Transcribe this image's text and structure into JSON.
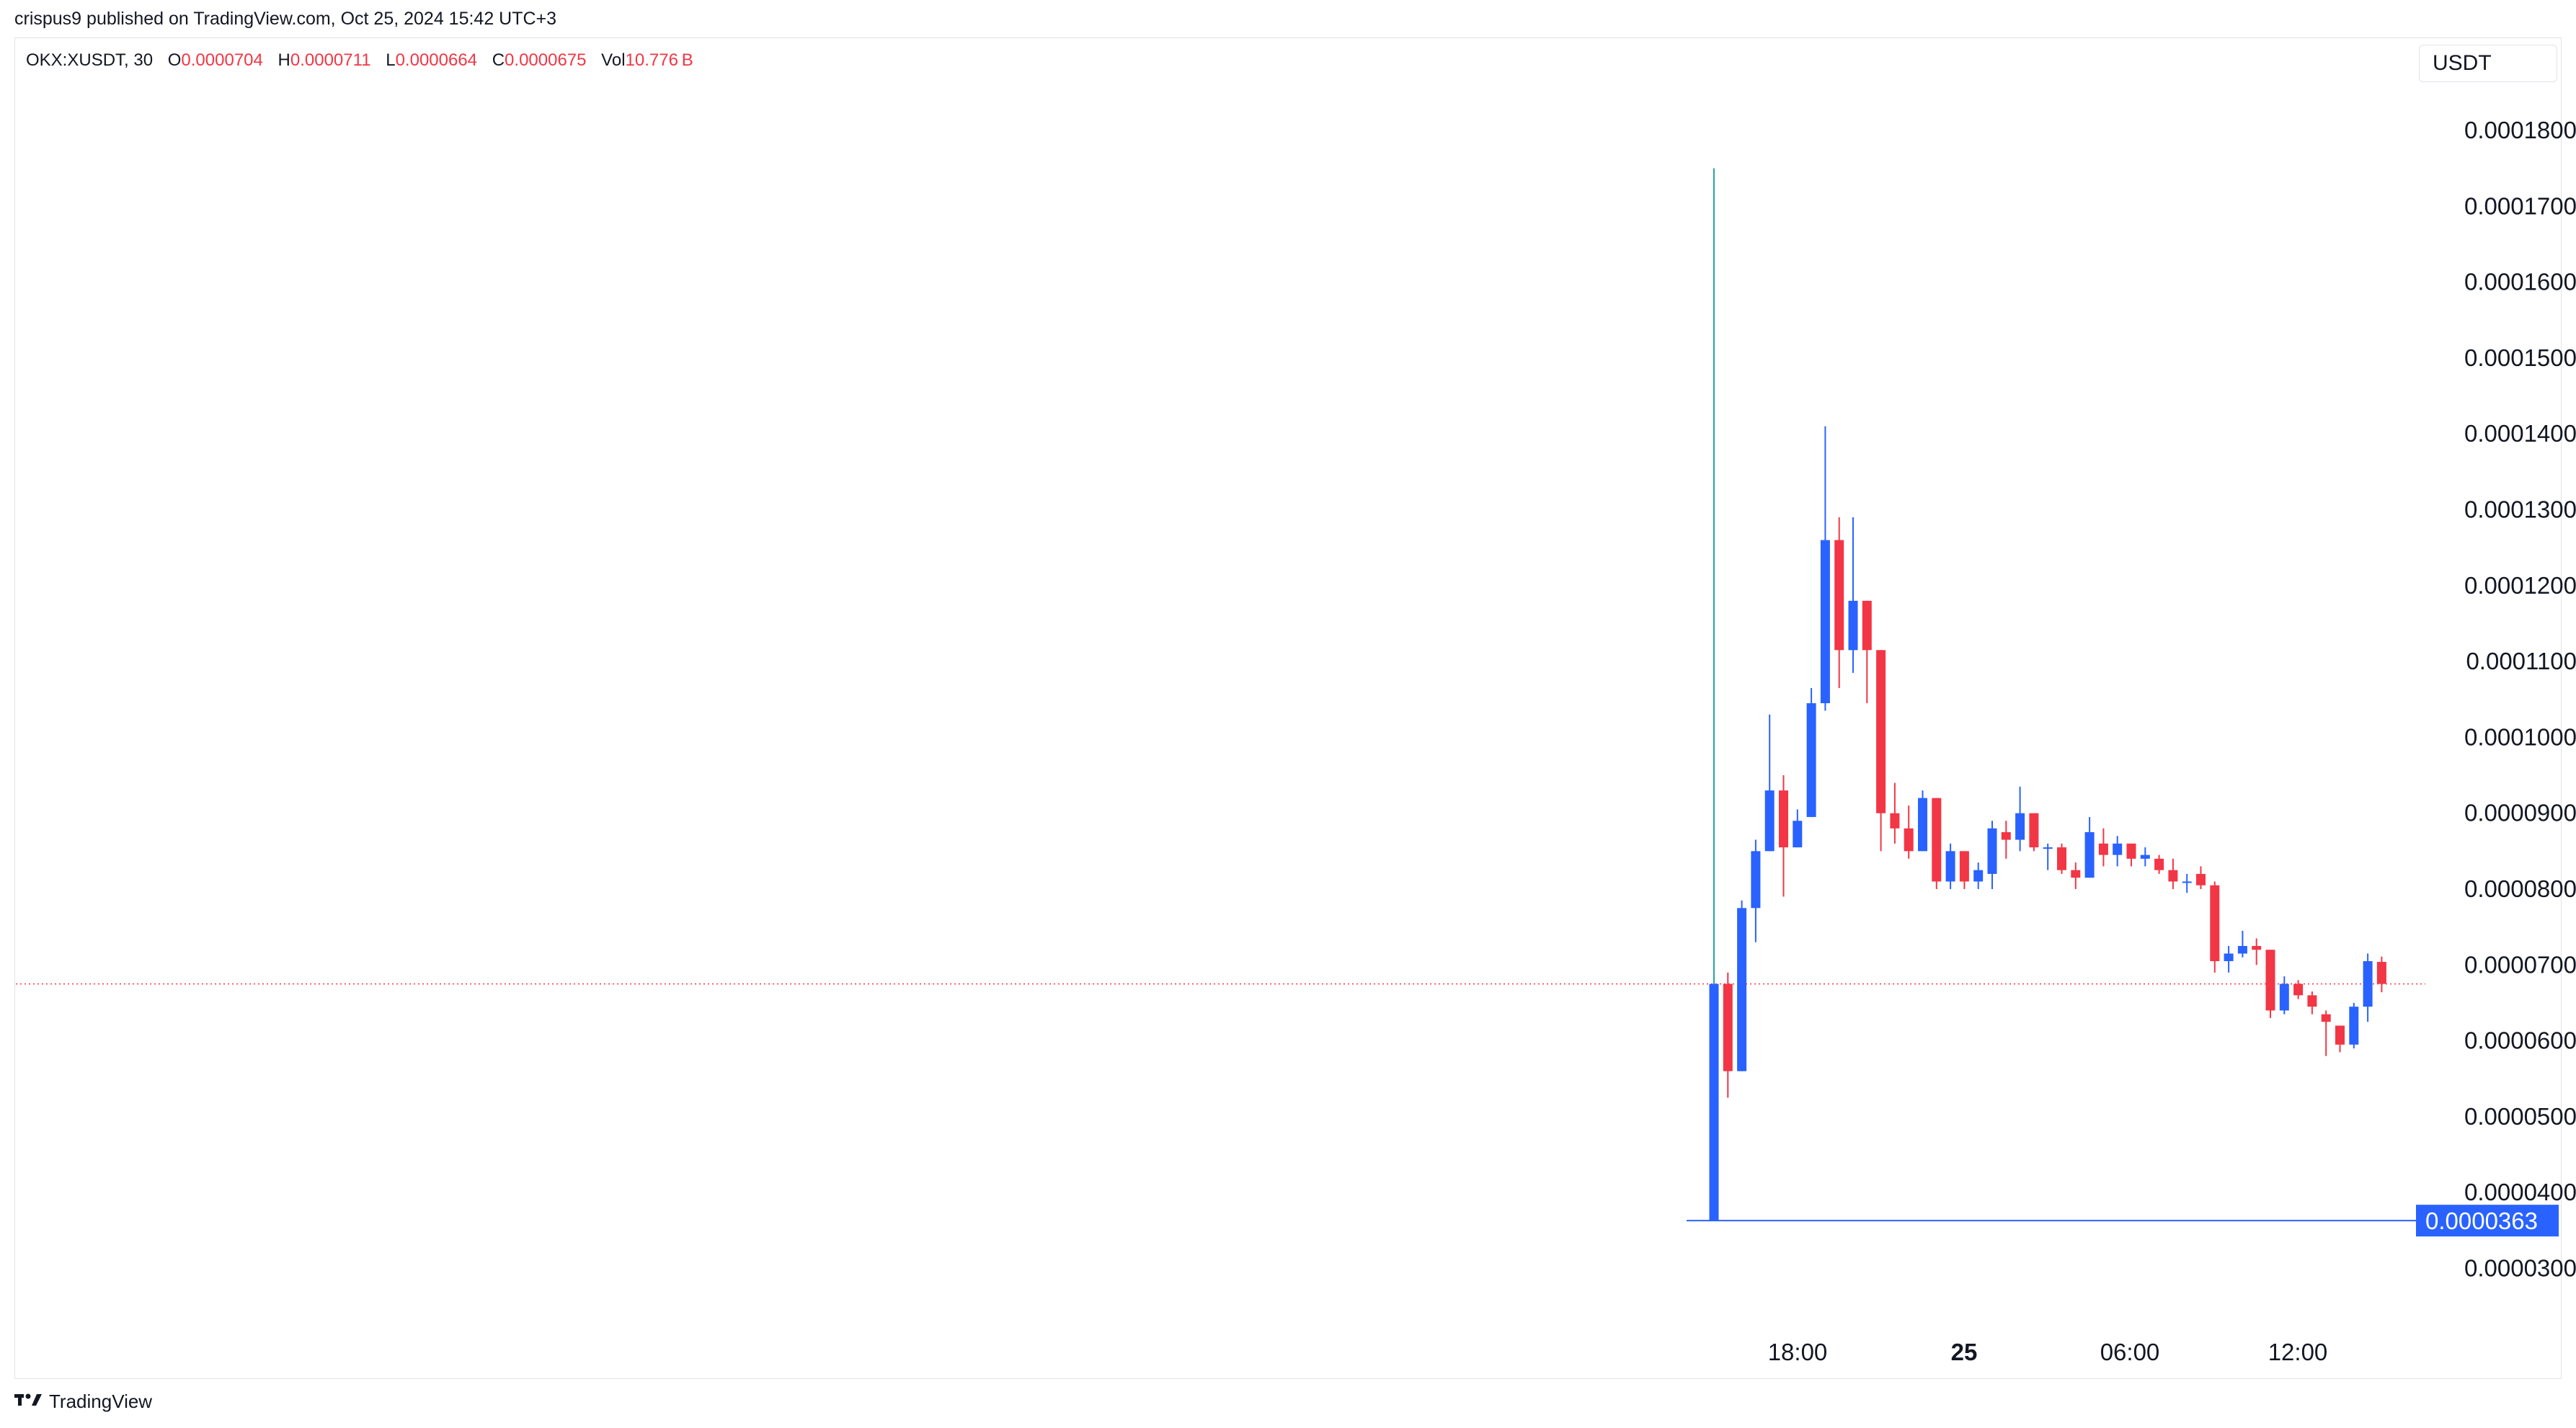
{
  "header": {
    "text": "crispus9 published on TradingView.com, Oct 25, 2024 15:42 UTC+3"
  },
  "legend": {
    "symbol": "OKX:XUSDT, 30",
    "o_label": "O",
    "o_value": "0.0000704",
    "h_label": "H",
    "h_value": "0.0000711",
    "l_label": "L",
    "l_value": "0.0000664",
    "c_label": "C",
    "c_value": "0.0000675",
    "vol_label": "Vol",
    "vol_value": "10.776 B"
  },
  "currency": "USDT",
  "footer": {
    "brand": "TradingView"
  },
  "colors": {
    "up": "#2962ff",
    "down": "#f23645",
    "spike_wick": "#26a69a",
    "price_line": "#f23645",
    "low_marker": "#2962ff"
  },
  "chart_data": {
    "type": "candlestick",
    "interval": "30",
    "y_axis": {
      "side": "right",
      "ticks": [
        "0.0001800",
        "0.0001700",
        "0.0001600",
        "0.0001500",
        "0.0001400",
        "0.0001300",
        "0.0001200",
        "0.0001100",
        "0.0001000",
        "0.0000900",
        "0.0000800",
        "0.0000700",
        "0.0000600",
        "0.0000500",
        "0.0000400",
        "0.0000300"
      ],
      "range": [
        2.15e-05,
        1.9e-05
      ]
    },
    "x_axis": {
      "ticks": [
        "18:00",
        "25",
        "06:00",
        "12:00"
      ],
      "bold": [
        "25"
      ]
    },
    "low_marker": {
      "value": 3.63e-05,
      "label": "0.0000363"
    },
    "last_price": 6.75e-05,
    "candles": [
      {
        "o": 3.63e-05,
        "h": 0.000175,
        "l": 3.63e-05,
        "c": 6.75e-05
      },
      {
        "o": 6.75e-05,
        "h": 6.9e-05,
        "l": 5.25e-05,
        "c": 5.6e-05
      },
      {
        "o": 5.6e-05,
        "h": 7.85e-05,
        "l": 5.6e-05,
        "c": 7.75e-05
      },
      {
        "o": 7.75e-05,
        "h": 8.65e-05,
        "l": 7.3e-05,
        "c": 8.5e-05
      },
      {
        "o": 8.5e-05,
        "h": 0.000103,
        "l": 8.5e-05,
        "c": 9.3e-05
      },
      {
        "o": 9.3e-05,
        "h": 9.5e-05,
        "l": 7.9e-05,
        "c": 8.55e-05
      },
      {
        "o": 8.55e-05,
        "h": 9.05e-05,
        "l": 8.55e-05,
        "c": 8.9e-05
      },
      {
        "o": 8.95e-05,
        "h": 0.0001065,
        "l": 8.95e-05,
        "c": 0.0001045
      },
      {
        "o": 0.0001045,
        "h": 0.000141,
        "l": 0.0001035,
        "c": 0.000126
      },
      {
        "o": 0.000126,
        "h": 0.000129,
        "l": 0.0001065,
        "c": 0.0001115
      },
      {
        "o": 0.0001115,
        "h": 0.000129,
        "l": 0.0001085,
        "c": 0.000118
      },
      {
        "o": 0.000118,
        "h": 0.000118,
        "l": 0.0001045,
        "c": 0.0001115
      },
      {
        "o": 0.0001115,
        "h": 0.0001115,
        "l": 8.5e-05,
        "c": 9e-05
      },
      {
        "o": 9e-05,
        "h": 9.4e-05,
        "l": 8.6e-05,
        "c": 8.8e-05
      },
      {
        "o": 8.8e-05,
        "h": 9.1e-05,
        "l": 8.4e-05,
        "c": 8.5e-05
      },
      {
        "o": 8.5e-05,
        "h": 9.3e-05,
        "l": 8.5e-05,
        "c": 9.2e-05
      },
      {
        "o": 9.2e-05,
        "h": 9.2e-05,
        "l": 8e-05,
        "c": 8.1e-05
      },
      {
        "o": 8.1e-05,
        "h": 8.6e-05,
        "l": 8e-05,
        "c": 8.5e-05
      },
      {
        "o": 8.5e-05,
        "h": 8.5e-05,
        "l": 8e-05,
        "c": 8.1e-05
      },
      {
        "o": 8.1e-05,
        "h": 8.35e-05,
        "l": 8e-05,
        "c": 8.25e-05
      },
      {
        "o": 8.2e-05,
        "h": 8.9e-05,
        "l": 8e-05,
        "c": 8.8e-05
      },
      {
        "o": 8.75e-05,
        "h": 8.9e-05,
        "l": 8.4e-05,
        "c": 8.65e-05
      },
      {
        "o": 8.65e-05,
        "h": 9.35e-05,
        "l": 8.5e-05,
        "c": 9e-05
      },
      {
        "o": 9e-05,
        "h": 9e-05,
        "l": 8.5e-05,
        "c": 8.55e-05
      },
      {
        "o": 8.55e-05,
        "h": 8.6e-05,
        "l": 8.25e-05,
        "c": 8.55e-05
      },
      {
        "o": 8.55e-05,
        "h": 8.6e-05,
        "l": 8.2e-05,
        "c": 8.25e-05
      },
      {
        "o": 8.25e-05,
        "h": 8.35e-05,
        "l": 8e-05,
        "c": 8.15e-05
      },
      {
        "o": 8.15e-05,
        "h": 8.95e-05,
        "l": 8.15e-05,
        "c": 8.75e-05
      },
      {
        "o": 8.6e-05,
        "h": 8.8e-05,
        "l": 8.3e-05,
        "c": 8.45e-05
      },
      {
        "o": 8.45e-05,
        "h": 8.7e-05,
        "l": 8.3e-05,
        "c": 8.6e-05
      },
      {
        "o": 8.6e-05,
        "h": 8.6e-05,
        "l": 8.3e-05,
        "c": 8.4e-05
      },
      {
        "o": 8.4e-05,
        "h": 8.55e-05,
        "l": 8.3e-05,
        "c": 8.45e-05
      },
      {
        "o": 8.4e-05,
        "h": 8.45e-05,
        "l": 8.2e-05,
        "c": 8.25e-05
      },
      {
        "o": 8.25e-05,
        "h": 8.4e-05,
        "l": 8e-05,
        "c": 8.1e-05
      },
      {
        "o": 8.1e-05,
        "h": 8.2e-05,
        "l": 7.95e-05,
        "c": 8.1e-05
      },
      {
        "o": 8.2e-05,
        "h": 8.3e-05,
        "l": 8e-05,
        "c": 8.05e-05
      },
      {
        "o": 8.05e-05,
        "h": 8.1e-05,
        "l": 6.9e-05,
        "c": 7.05e-05
      },
      {
        "o": 7.05e-05,
        "h": 7.25e-05,
        "l": 6.9e-05,
        "c": 7.15e-05
      },
      {
        "o": 7.15e-05,
        "h": 7.45e-05,
        "l": 7.1e-05,
        "c": 7.25e-05
      },
      {
        "o": 7.25e-05,
        "h": 7.35e-05,
        "l": 7e-05,
        "c": 7.2e-05
      },
      {
        "o": 7.2e-05,
        "h": 7.2e-05,
        "l": 6.3e-05,
        "c": 6.4e-05
      },
      {
        "o": 6.4e-05,
        "h": 6.85e-05,
        "l": 6.35e-05,
        "c": 6.75e-05
      },
      {
        "o": 6.75e-05,
        "h": 6.8e-05,
        "l": 6.55e-05,
        "c": 6.6e-05
      },
      {
        "o": 6.6e-05,
        "h": 6.65e-05,
        "l": 6.35e-05,
        "c": 6.45e-05
      },
      {
        "o": 6.35e-05,
        "h": 6.4e-05,
        "l": 5.8e-05,
        "c": 6.25e-05
      },
      {
        "o": 6.2e-05,
        "h": 6.2e-05,
        "l": 5.85e-05,
        "c": 5.95e-05
      },
      {
        "o": 5.95e-05,
        "h": 6.5e-05,
        "l": 5.9e-05,
        "c": 6.45e-05
      },
      {
        "o": 6.45e-05,
        "h": 7.15e-05,
        "l": 6.25e-05,
        "c": 7.05e-05
      },
      {
        "o": 7.04e-05,
        "h": 7.11e-05,
        "l": 6.64e-05,
        "c": 6.75e-05
      }
    ]
  }
}
